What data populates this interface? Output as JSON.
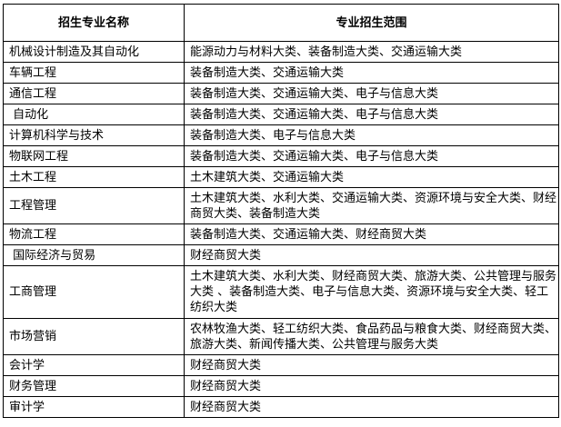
{
  "table": {
    "headers": [
      "招生专业名称",
      "专业招生范围"
    ],
    "rows": [
      {
        "major": "机械设计制造及其自动化",
        "scope": "能源动力与材料大类、装备制造大类、交通运输大类",
        "lines": 1
      },
      {
        "major": "车辆工程",
        "scope": "装备制造大类、交通运输大类",
        "lines": 1
      },
      {
        "major": "通信工程",
        "scope": "装备制造大类、交通运输大类、电子与信息大类",
        "lines": 1
      },
      {
        "major": " 自动化",
        "scope": "装备制造大类、交通运输大类、电子与信息大类",
        "lines": 1
      },
      {
        "major": "计算机科学与技术",
        "scope": "装备制造大类、电子与信息大类",
        "lines": 1
      },
      {
        "major": "物联网工程",
        "scope": "装备制造大类、交通运输大类、电子与信息大类",
        "lines": 1
      },
      {
        "major": "土木工程",
        "scope": "土木建筑大类、交通运输大类",
        "lines": 1
      },
      {
        "major": "工程管理",
        "scope": "土木建筑大类、水利大类、交通运输大类、资源环境与安全大类、财经商贸大类、装备制造大类",
        "lines": 2
      },
      {
        "major": "物流工程",
        "scope": "装备制造大类、交通运输大类、财经商贸大类",
        "lines": 1
      },
      {
        "major": " 国际经济与贸易",
        "scope": "财经商贸大类",
        "lines": 1
      },
      {
        "major": "工商管理",
        "scope": "土木建筑大类、水利大类、财经商贸大类、旅游大类、公共管理与服务大类 、装备制造大类、电子与信息大类、资源环境与安全大类、轻工纺织大类",
        "lines": 3
      },
      {
        "major": "市场营销",
        "scope": "农林牧渔大类、轻工纺织大类、食品药品与粮食大类、财经商贸大类、旅游大类、新闻传播大类、公共管理与服务大类",
        "lines": 2
      },
      {
        "major": "会计学",
        "scope": "财经商贸大类",
        "lines": 1
      },
      {
        "major": "财务管理",
        "scope": "财经商贸大类",
        "lines": 1
      },
      {
        "major": "审计学",
        "scope": "财经商贸大类",
        "lines": 1
      }
    ]
  }
}
